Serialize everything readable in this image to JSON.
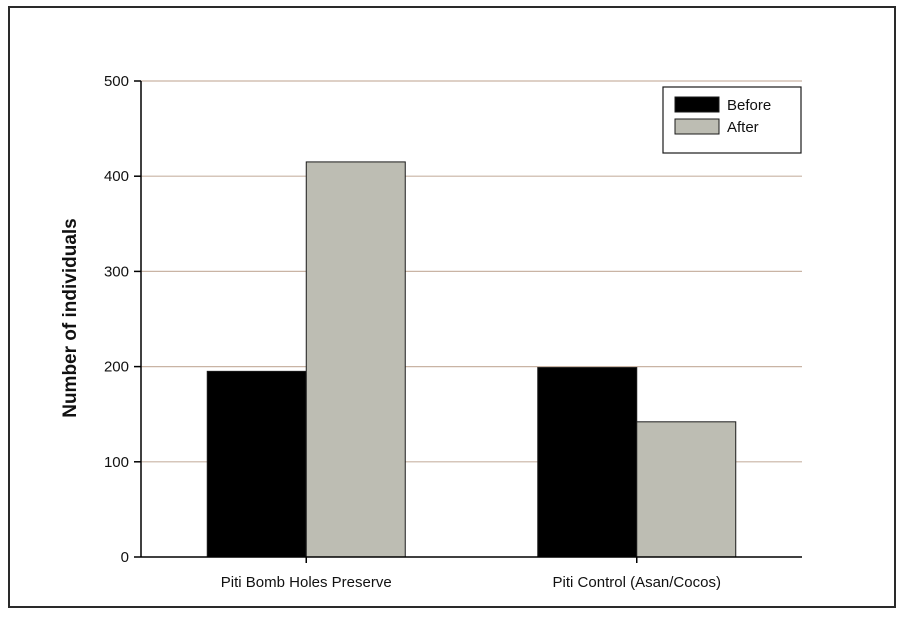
{
  "chart_data": {
    "type": "bar",
    "title": "",
    "xlabel": "",
    "ylabel": "Number of individuals",
    "ylim": [
      0,
      500
    ],
    "yticks": [
      0,
      100,
      200,
      300,
      400,
      500
    ],
    "categories": [
      "Piti Bomb Holes Preserve",
      "Piti Control (Asan/Cocos)"
    ],
    "series": [
      {
        "name": "Before",
        "values": [
          195,
          199
        ],
        "color": "#000000"
      },
      {
        "name": "After",
        "values": [
          415,
          142
        ],
        "color": "#bdbdb3"
      }
    ],
    "grid": true,
    "grid_color": "#c9b4a4",
    "legend_position": "top-right"
  }
}
